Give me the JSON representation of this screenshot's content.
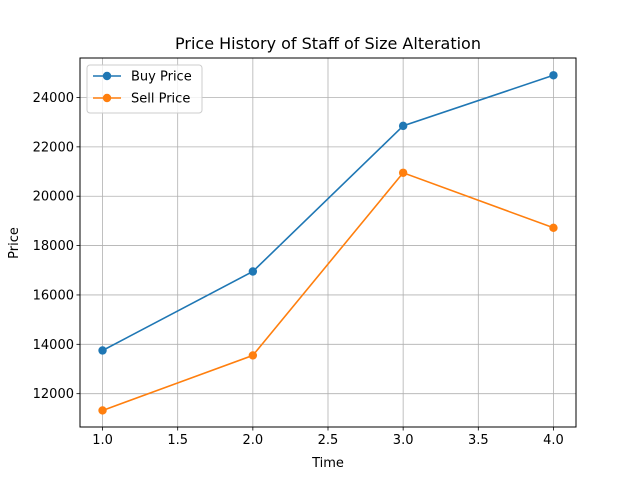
{
  "chart_data": {
    "type": "line",
    "title": "Price History of Staff of Size Alteration",
    "xlabel": "Time",
    "ylabel": "Price",
    "x": [
      1.0,
      2.0,
      3.0,
      4.0
    ],
    "series": [
      {
        "name": "Buy Price",
        "values": [
          13750,
          16950,
          22850,
          24900
        ],
        "color": "#1f77b4",
        "marker": "circle"
      },
      {
        "name": "Sell Price",
        "values": [
          11320,
          13550,
          20950,
          18720
        ],
        "color": "#ff7f0e",
        "marker": "circle"
      }
    ],
    "xlim": [
      0.85,
      4.15
    ],
    "ylim": [
      10650,
      25600
    ],
    "xticks": [
      "1.0",
      "1.5",
      "2.0",
      "2.5",
      "3.0",
      "3.5",
      "4.0"
    ],
    "yticks": [
      "12000",
      "14000",
      "16000",
      "18000",
      "20000",
      "22000",
      "24000"
    ],
    "grid": true,
    "legend_position": "top-left"
  }
}
